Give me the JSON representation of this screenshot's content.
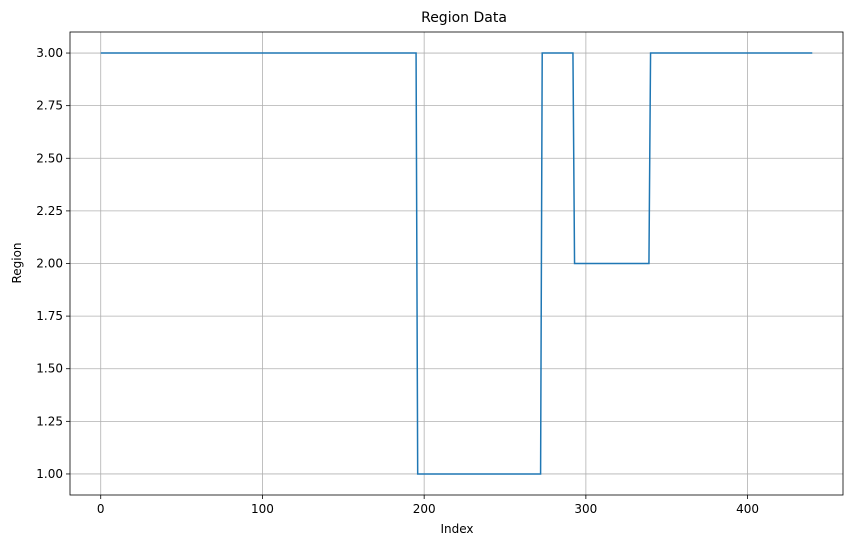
{
  "chart_data": {
    "type": "line",
    "title": "Region Data",
    "xlabel": "Index",
    "ylabel": "Region",
    "xlim": [
      -19,
      459
    ],
    "ylim": [
      0.9,
      3.1
    ],
    "xticks": [
      0,
      100,
      200,
      300,
      400
    ],
    "xtick_labels": [
      "0",
      "100",
      "200",
      "300",
      "400"
    ],
    "yticks": [
      1.0,
      1.25,
      1.5,
      1.75,
      2.0,
      2.25,
      2.5,
      2.75,
      3.0
    ],
    "ytick_labels": [
      "1.00",
      "1.25",
      "1.50",
      "1.75",
      "2.00",
      "2.25",
      "2.50",
      "2.75",
      "3.00"
    ],
    "grid": true,
    "series": [
      {
        "color": "#1f77b4",
        "x": [
          0,
          195,
          196,
          272,
          273,
          292,
          293,
          339,
          340,
          440
        ],
        "y": [
          3,
          3,
          1,
          1,
          3,
          3,
          2,
          2,
          3,
          3
        ]
      }
    ]
  }
}
